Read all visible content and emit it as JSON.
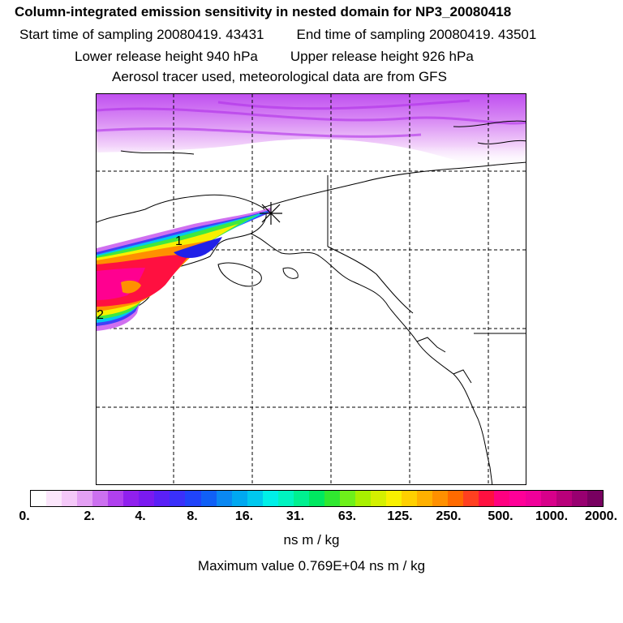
{
  "header": {
    "title": "Column-integrated emission sensitivity in nested domain for NP3_20080418",
    "start_time": "Start time of sampling 20080419. 43431",
    "end_time": "End time of sampling 20080419. 43501",
    "lower_release": "Lower release height  940 hPa",
    "upper_release": "Upper release height  926 hPa",
    "note": "Aerosol tracer used, meteorological data are from GFS"
  },
  "map": {
    "marker": "release-point-x",
    "labels": [
      "1",
      "2"
    ]
  },
  "colorbar": {
    "ticks": [
      "0.",
      "2.",
      "4.",
      "8.",
      "16.",
      "31.",
      "63.",
      "125.",
      "250.",
      "500.",
      "1000.",
      "2000."
    ],
    "colors": [
      "#ffffff",
      "#fbe6fb",
      "#f4c8f8",
      "#e4a0f4",
      "#cc70f0",
      "#b040ee",
      "#9020ee",
      "#7a1af0",
      "#5a20f6",
      "#3a30fa",
      "#2044fa",
      "#1060f6",
      "#0a88f2",
      "#00a8f0",
      "#00c8ee",
      "#00f0e8",
      "#00f4c0",
      "#00f090",
      "#00e860",
      "#30e830",
      "#6ef01a",
      "#a8f000",
      "#d4f000",
      "#f8f000",
      "#ffd000",
      "#ffb000",
      "#ff9000",
      "#ff6a00",
      "#ff4020",
      "#ff1040",
      "#ff0080",
      "#ff0098",
      "#f0009a",
      "#d8008a",
      "#b8007a",
      "#980070",
      "#780060"
    ],
    "unit": "ns m / kg",
    "max_value": "Maximum value  0.769E+04 ns m / kg"
  }
}
